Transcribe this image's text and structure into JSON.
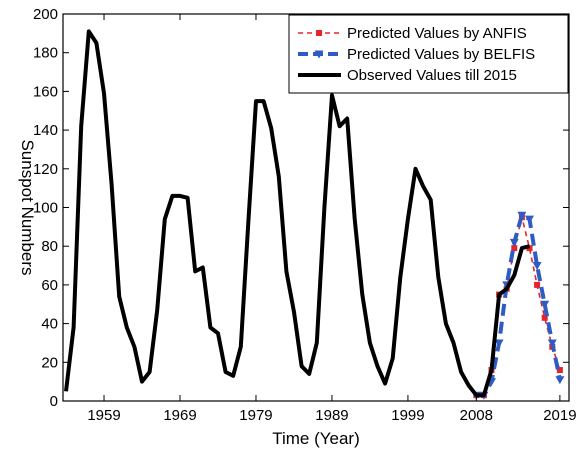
{
  "chart_data": {
    "type": "line",
    "xlabel": "Time (Year)",
    "ylabel": "Sunspot Numbers",
    "xlim": [
      1953.6,
      2020.2
    ],
    "ylim": [
      0,
      200
    ],
    "x_ticks": [
      1959,
      1969,
      1979,
      1989,
      1999,
      2008,
      2019
    ],
    "y_ticks": [
      0,
      20,
      40,
      60,
      80,
      100,
      120,
      140,
      160,
      180,
      200
    ],
    "grid": false,
    "legend_position": "top-right",
    "legend": [
      "Predicted Values by ANFIS",
      "Predicted Values by BELFIS",
      "Observed Values till 2015"
    ],
    "series": [
      {
        "name": "Predicted Values by ANFIS",
        "color": "#e8242a",
        "style": "dashed",
        "marker": "square",
        "x": [
          2008,
          2009,
          2010,
          2011,
          2012,
          2013,
          2014,
          2015,
          2016,
          2017,
          2018,
          2019
        ],
        "y": [
          3,
          3,
          16,
          55,
          58,
          79,
          95,
          79,
          60,
          43,
          28,
          16
        ]
      },
      {
        "name": "Predicted Values by BELFIS",
        "color": "#2f5cc4",
        "style": "dashed",
        "marker": "triangle-down",
        "x": [
          2008,
          2009,
          2010,
          2011,
          2012,
          2013,
          2014,
          2015,
          2016,
          2017,
          2018,
          2019
        ],
        "y": [
          3,
          3,
          10,
          30,
          60,
          82,
          96,
          94,
          70,
          50,
          30,
          11
        ]
      },
      {
        "name": "Observed Values till 2015",
        "color": "#000000",
        "style": "solid",
        "marker": "none",
        "x": [
          1954,
          1955,
          1956,
          1957,
          1958,
          1959,
          1960,
          1961,
          1962,
          1963,
          1964,
          1965,
          1966,
          1967,
          1968,
          1969,
          1970,
          1971,
          1972,
          1973,
          1974,
          1975,
          1976,
          1977,
          1978,
          1979,
          1980,
          1981,
          1982,
          1983,
          1984,
          1985,
          1986,
          1987,
          1988,
          1989,
          1990,
          1991,
          1992,
          1993,
          1994,
          1995,
          1996,
          1997,
          1998,
          1999,
          2000,
          2001,
          2002,
          2003,
          2004,
          2005,
          2006,
          2007,
          2008,
          2009,
          2010,
          2011,
          2012,
          2013,
          2014,
          2015
        ],
        "y": [
          5,
          38,
          142,
          191,
          185,
          159,
          112,
          54,
          38,
          28,
          10,
          15,
          47,
          94,
          106,
          106,
          105,
          67,
          69,
          38,
          35,
          15,
          13,
          28,
          93,
          155,
          155,
          141,
          116,
          67,
          46,
          18,
          14,
          30,
          100,
          158,
          142,
          146,
          94,
          55,
          30,
          18,
          9,
          22,
          64,
          94,
          120,
          111,
          104,
          64,
          40,
          30,
          15,
          8,
          3,
          3,
          16,
          55,
          58,
          65,
          79,
          80
        ]
      }
    ]
  }
}
